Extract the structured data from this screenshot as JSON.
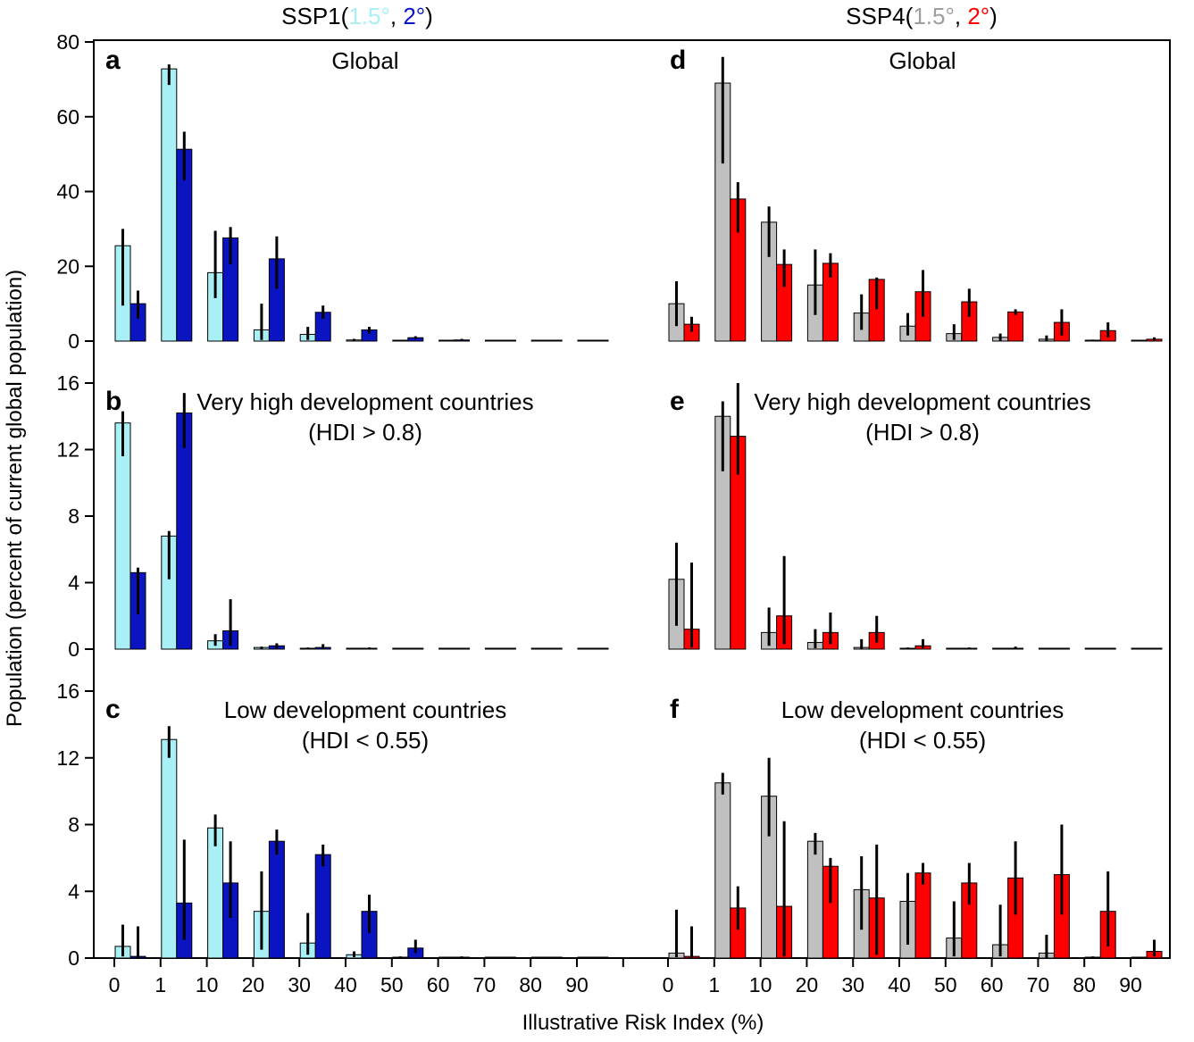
{
  "chart_data": {
    "type": "bar",
    "figure": {
      "xlabel": "Illustrative Risk Index (%)",
      "ylabel": "Population (percent of current global population)",
      "x_tick_labels": [
        "0",
        "1",
        "10",
        "20",
        "30",
        "40",
        "50",
        "60",
        "70",
        "80",
        "90"
      ]
    },
    "columns": [
      {
        "header_prefix": "SSP1(",
        "header_a": "1.5°",
        "header_sep": ", ",
        "header_b": "2°",
        "header_suffix": ")",
        "color_a": "#a8f0f5",
        "color_b": "#0a14c0"
      },
      {
        "header_prefix": "SSP4(",
        "header_a": "1.5°",
        "header_sep": ", ",
        "header_b": "2°",
        "header_suffix": ")",
        "color_a": "#c0c0c0",
        "color_b": "#ff0000"
      }
    ],
    "rows": [
      {
        "ylim": [
          0,
          80
        ],
        "yticks": [
          0,
          20,
          40,
          60,
          80
        ]
      },
      {
        "ylim": [
          0,
          16
        ],
        "yticks": [
          0,
          4,
          8,
          12,
          16
        ]
      },
      {
        "ylim": [
          0,
          16
        ],
        "yticks": [
          0,
          4,
          8,
          12,
          16
        ]
      }
    ],
    "categories": [
      "0–1",
      "1–10",
      "10–20",
      "20–30",
      "30–40",
      "40–50",
      "50–60",
      "60–70",
      "70–80",
      "80–90",
      "90–100"
    ],
    "panels": [
      {
        "letter": "a",
        "col": 0,
        "row": 0,
        "title_line1": "Global",
        "title_line2": "",
        "series": [
          {
            "name": "SSP1 1.5°",
            "values": [
              25.5,
              72.8,
              18.3,
              3.0,
              1.8,
              0.3,
              0.1,
              0.05,
              0.02,
              0.01,
              0.0
            ],
            "err_low": [
              9.5,
              68.5,
              11.5,
              0.3,
              0.3,
              0.1,
              0,
              0,
              0,
              0,
              0
            ],
            "err_high": [
              30.0,
              74.0,
              29.5,
              10.0,
              3.8,
              0.6,
              0.3,
              0.1,
              0,
              0,
              0
            ]
          },
          {
            "name": "SSP1 2°",
            "values": [
              10.0,
              51.3,
              27.6,
              22.0,
              7.7,
              3.0,
              0.9,
              0.3,
              0.1,
              0.05,
              0.0
            ],
            "err_low": [
              6.0,
              43.0,
              20.5,
              14.0,
              6.0,
              2.0,
              0.5,
              0.1,
              0,
              0,
              0
            ],
            "err_high": [
              13.5,
              56.0,
              30.5,
              28.0,
              9.5,
              3.8,
              1.3,
              0.6,
              0.2,
              0.1,
              0
            ]
          }
        ]
      },
      {
        "letter": "d",
        "col": 1,
        "row": 0,
        "title_line1": "Global",
        "title_line2": "",
        "series": [
          {
            "name": "SSP4 1.5°",
            "values": [
              10.0,
              69.0,
              31.8,
              15.0,
              7.5,
              4.0,
              2.0,
              1.0,
              0.5,
              0.2,
              0.0
            ],
            "err_low": [
              4.0,
              47.5,
              22.5,
              7.0,
              3.0,
              1.5,
              0.3,
              0.1,
              0,
              0,
              0
            ],
            "err_high": [
              16.0,
              76.0,
              36.0,
              24.5,
              12.5,
              7.5,
              4.5,
              2.0,
              1.5,
              0.4,
              0
            ]
          },
          {
            "name": "SSP4 2°",
            "values": [
              4.5,
              38.0,
              20.5,
              20.8,
              16.5,
              13.2,
              10.5,
              7.8,
              5.0,
              2.8,
              0.5
            ],
            "err_low": [
              2.5,
              29.0,
              14.5,
              17.0,
              8.5,
              6.5,
              6.5,
              7.0,
              1.5,
              1.0,
              0.1
            ],
            "err_high": [
              6.5,
              42.5,
              24.5,
              23.5,
              17.0,
              19.0,
              14.0,
              8.5,
              8.5,
              5.0,
              1.0
            ]
          }
        ]
      },
      {
        "letter": "b",
        "col": 0,
        "row": 1,
        "title_line1": "Very high development countries",
        "title_line2": "(HDI > 0.8)",
        "series": [
          {
            "name": "SSP1 1.5°",
            "values": [
              13.6,
              6.8,
              0.5,
              0.1,
              0.05,
              0.02,
              0.0,
              0.0,
              0.0,
              0.0,
              0.0
            ],
            "err_low": [
              11.6,
              4.2,
              0.2,
              0.02,
              0,
              0,
              0,
              0,
              0,
              0,
              0
            ],
            "err_high": [
              14.3,
              7.1,
              0.9,
              0.15,
              0.1,
              0.05,
              0,
              0,
              0,
              0,
              0
            ]
          },
          {
            "name": "SSP1 2°",
            "values": [
              4.6,
              14.2,
              1.1,
              0.2,
              0.1,
              0.05,
              0.03,
              0.02,
              0.0,
              0.0,
              0.0
            ],
            "err_low": [
              2.1,
              12.1,
              0.2,
              0.05,
              0.02,
              0,
              0,
              0,
              0,
              0,
              0
            ],
            "err_high": [
              4.9,
              15.4,
              3.0,
              0.35,
              0.3,
              0.1,
              0.08,
              0.05,
              0,
              0,
              0
            ]
          }
        ]
      },
      {
        "letter": "e",
        "col": 1,
        "row": 1,
        "title_line1": "Very high development countries",
        "title_line2": "(HDI > 0.8)",
        "series": [
          {
            "name": "SSP4 1.5°",
            "values": [
              4.2,
              14.0,
              1.0,
              0.4,
              0.1,
              0.02,
              0.0,
              0.0,
              0.0,
              0.0,
              0.0
            ],
            "err_low": [
              1.4,
              10.7,
              0.2,
              0.05,
              0.02,
              0,
              0,
              0,
              0,
              0,
              0
            ],
            "err_high": [
              6.4,
              14.9,
              2.5,
              1.2,
              0.6,
              0.1,
              0,
              0,
              0,
              0,
              0
            ]
          },
          {
            "name": "SSP4 2°",
            "values": [
              1.2,
              12.8,
              2.0,
              1.0,
              1.0,
              0.2,
              0.05,
              0.05,
              0.0,
              0.0,
              0.0
            ],
            "err_low": [
              0.1,
              10.5,
              0.3,
              0.3,
              0.4,
              0.05,
              0,
              0,
              0,
              0,
              0
            ],
            "err_high": [
              5.2,
              16.0,
              5.6,
              2.2,
              2.0,
              0.6,
              0.1,
              0.15,
              0,
              0,
              0
            ]
          }
        ]
      },
      {
        "letter": "c",
        "col": 0,
        "row": 2,
        "title_line1": "Low development countries",
        "title_line2": "(HDI < 0.55)",
        "series": [
          {
            "name": "SSP1 1.5°",
            "values": [
              0.7,
              13.1,
              7.8,
              2.8,
              0.9,
              0.2,
              0.05,
              0.02,
              0.0,
              0.0,
              0.0
            ],
            "err_low": [
              0.1,
              12.0,
              6.7,
              0.5,
              0.2,
              0.05,
              0,
              0,
              0,
              0,
              0
            ],
            "err_high": [
              2.0,
              13.9,
              8.6,
              5.2,
              2.7,
              0.4,
              0.1,
              0.05,
              0,
              0,
              0
            ]
          },
          {
            "name": "SSP1 2°",
            "values": [
              0.1,
              3.3,
              4.5,
              7.0,
              6.2,
              2.8,
              0.6,
              0.05,
              0.02,
              0.0,
              0.0
            ],
            "err_low": [
              0.02,
              1.1,
              2.4,
              6.2,
              5.5,
              1.5,
              0.3,
              0,
              0,
              0,
              0
            ],
            "err_high": [
              1.9,
              7.1,
              7.0,
              7.7,
              6.8,
              3.8,
              1.1,
              0.1,
              0.05,
              0,
              0
            ]
          }
        ]
      },
      {
        "letter": "f",
        "col": 1,
        "row": 2,
        "title_line1": "Low development countries",
        "title_line2": "(HDI < 0.55)",
        "series": [
          {
            "name": "SSP4 1.5°",
            "values": [
              0.3,
              10.5,
              9.7,
              7.0,
              4.1,
              3.4,
              1.2,
              0.8,
              0.3,
              0.05,
              0.02
            ],
            "err_low": [
              0.05,
              9.8,
              7.3,
              6.2,
              1.7,
              0.8,
              0.1,
              0.1,
              0.02,
              0,
              0
            ],
            "err_high": [
              2.9,
              11.1,
              12.0,
              7.5,
              6.1,
              5.1,
              3.4,
              3.2,
              1.4,
              0.1,
              0.05
            ]
          },
          {
            "name": "SSP4 2°",
            "values": [
              0.1,
              3.0,
              3.1,
              5.5,
              3.6,
              5.1,
              4.5,
              4.8,
              5.0,
              2.8,
              0.4
            ],
            "err_low": [
              0.02,
              1.7,
              0.1,
              3.3,
              0.2,
              4.4,
              3.2,
              2.6,
              2.6,
              0.7,
              0.1
            ],
            "err_high": [
              1.9,
              4.3,
              8.2,
              6.0,
              6.8,
              5.7,
              5.7,
              7.0,
              8.0,
              5.2,
              1.1
            ]
          }
        ]
      }
    ]
  }
}
